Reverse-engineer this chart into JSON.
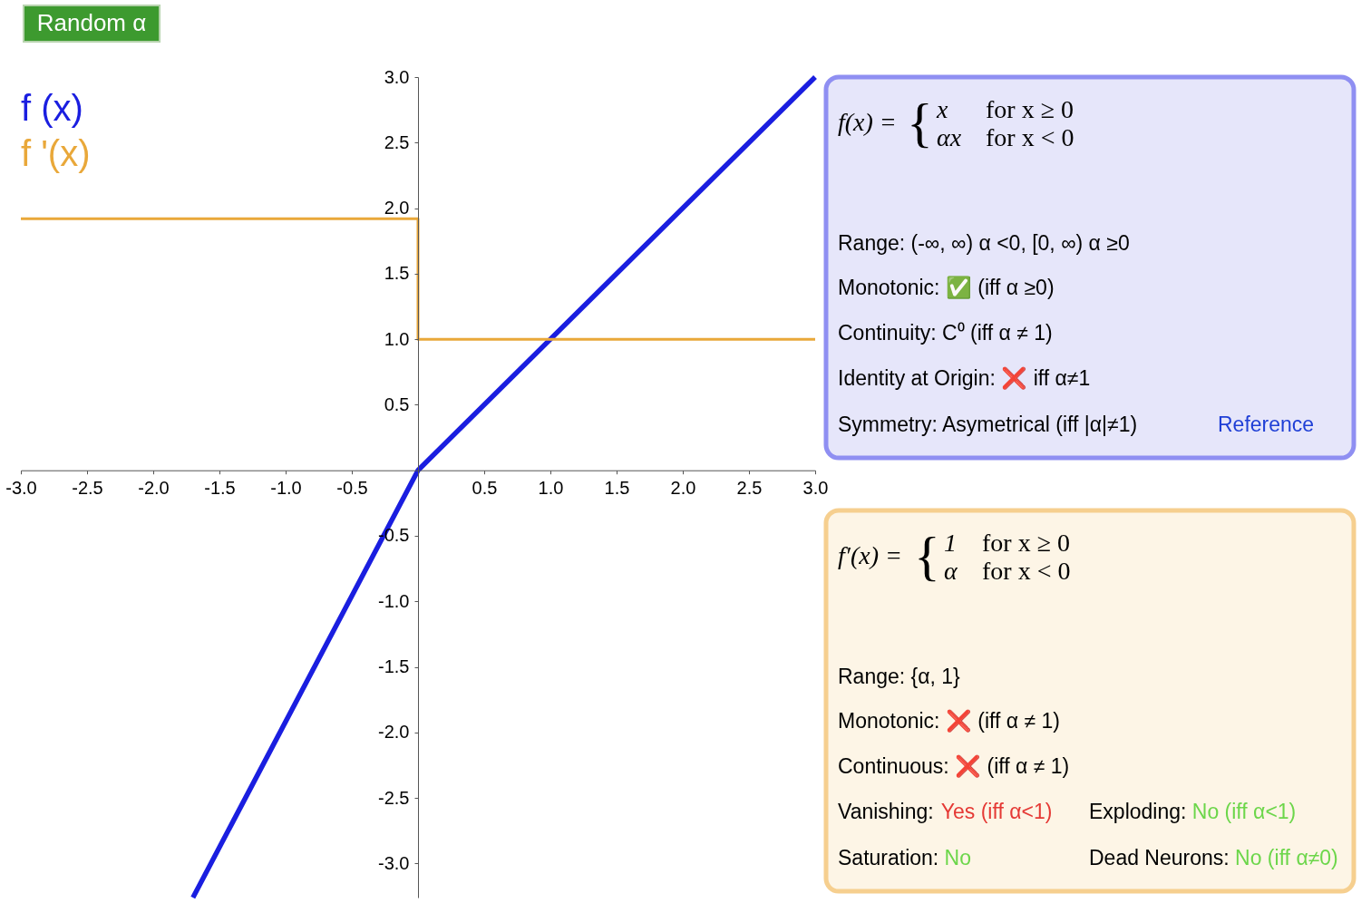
{
  "chart_data": [
    {
      "type": "line",
      "xlim": [
        -3,
        3
      ],
      "ylim": [
        -3.26,
        3
      ],
      "xticks": [
        {
          "value": -3,
          "label": "-3.0"
        },
        -2.5,
        {
          "value": -2,
          "label": "-2.0"
        },
        -1.5,
        {
          "value": -1,
          "label": "-1.0"
        },
        -0.5,
        0.5,
        {
          "value": 1,
          "label": "1.0"
        },
        1.5,
        {
          "value": 2,
          "label": "2.0"
        },
        2.5,
        {
          "value": 3,
          "label": "3.0"
        }
      ],
      "yticks": [
        {
          "value": -3,
          "label": "-3.0"
        },
        -2.5,
        {
          "value": -2,
          "label": "-2.0"
        },
        -1.5,
        {
          "value": -1,
          "label": "-1.0"
        },
        -0.5,
        0.5,
        {
          "value": 1,
          "label": "1.0"
        },
        1.5,
        {
          "value": 2,
          "label": "2.0"
        },
        2.5,
        {
          "value": 3,
          "label": "3.0"
        }
      ],
      "grid": false,
      "legend": "top left",
      "line_style": "solid",
      "annotations": [
        "Random α"
      ],
      "series": [
        {
          "name": "f (x)",
          "color": "#1a1ee0",
          "x": [
            -1.7,
            0,
            3
          ],
          "values": [
            -3.26,
            0,
            3
          ]
        },
        {
          "name": "f '(x)",
          "color": "#e9a83a",
          "x": [
            -3,
            0,
            0,
            3
          ],
          "values": [
            1.92,
            1.92,
            1,
            1
          ]
        }
      ]
    },
    {
      "type": "other",
      "annotations": [
        "f(x) =",
        "{",
        "x",
        "for x ≥ 0",
        "αx",
        "for x < 0",
        "Range: (-∞, ∞) α <0, [0, ∞) α ≥0",
        "Monotonic: ✅ (iff α ≥0)",
        "Continuity: C⁰ (iff α ≠ 1)",
        "Identity at Origin: ❌ iff α≠1",
        "Symmetry: Asymetrical (iff |α|≠1)",
        "Reference"
      ],
      "colors": [
        "#000000",
        "#000000",
        "#000000",
        "#000000",
        "#000000",
        "#000000",
        "#000000",
        "#000000",
        "#000000",
        "#000000",
        "#000000",
        "#1f3fd6"
      ]
    },
    {
      "type": "other",
      "annotations": [
        "f′(x) =",
        "{",
        "1",
        "for x ≥ 0",
        "α",
        "for x < 0",
        "Range: {α, 1}",
        "Monotonic: ❌ (iff α ≠ 1)",
        "Continuous: ❌ (iff α ≠ 1)",
        "Vanishing:",
        "Yes (iff α<1)",
        "Exploding:",
        "No (iff α<1)",
        "Saturation:",
        "No",
        "Dead Neurons:",
        "No (iff α≠0)"
      ],
      "colors": [
        "#000000",
        "#000000",
        "#000000",
        "#000000",
        "#000000",
        "#000000",
        "#000000",
        "#000000",
        "#000000",
        "#000000",
        "#e53935",
        "#000000",
        "#6cd64a",
        "#000000",
        "#6cd64a",
        "#000000",
        "#6cd64a"
      ]
    }
  ]
}
